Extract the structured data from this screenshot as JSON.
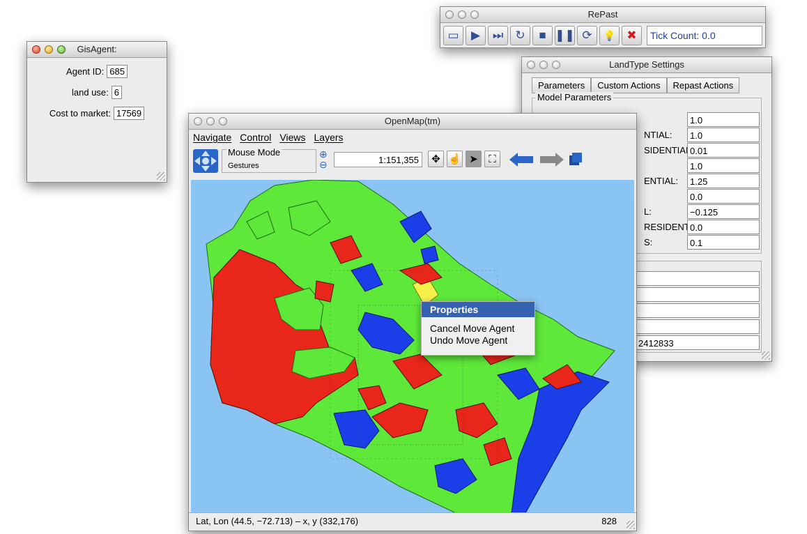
{
  "gis_agent": {
    "title": "GisAgent:",
    "fields": [
      {
        "label": "Agent ID:",
        "value": "685"
      },
      {
        "label": "land use:",
        "value": "6"
      },
      {
        "label": "Cost to market:",
        "value": "17569"
      }
    ]
  },
  "repast": {
    "title": "RePast",
    "tick_count": "Tick Count: 0.0",
    "buttons": [
      {
        "icon": "folder-icon",
        "glyph": "▭"
      },
      {
        "icon": "play-icon",
        "glyph": "▶"
      },
      {
        "icon": "step-icon",
        "glyph": "⏭"
      },
      {
        "icon": "restart-icon",
        "glyph": "↻"
      },
      {
        "icon": "stop-icon",
        "glyph": "■"
      },
      {
        "icon": "pause-icon",
        "glyph": "❚❚"
      },
      {
        "icon": "reload-icon",
        "glyph": "⟳"
      },
      {
        "icon": "lightbulb-icon",
        "glyph": "💡"
      },
      {
        "icon": "exit-icon",
        "glyph": "✖"
      }
    ]
  },
  "landtype": {
    "title": "LandType Settings",
    "tabs": [
      "Parameters",
      "Custom Actions",
      "Repast Actions"
    ],
    "group_title": "Model Parameters",
    "params": [
      {
        "label": "",
        "value": "1.0"
      },
      {
        "label": "NTIAL:",
        "value": "1.0"
      },
      {
        "label": "SIDENTIAL:",
        "value": "0.01"
      },
      {
        "label": "",
        "value": "1.0"
      },
      {
        "label": "ENTIAL:",
        "value": "1.25"
      },
      {
        "label": "",
        "value": "0.0"
      },
      {
        "label": "L:",
        "value": "−0.125"
      },
      {
        "label": "RESIDENTIAL:",
        "value": "0.0"
      },
      {
        "label": "S:",
        "value": "0.1"
      }
    ],
    "lower_values": [
      "",
      "",
      "",
      "",
      "2412833"
    ]
  },
  "openmap": {
    "title": "OpenMap(tm)",
    "menus": [
      "Navigate",
      "Control",
      "Views",
      "Layers"
    ],
    "mouse_mode_label": "Mouse Mode",
    "mouse_mode_value": "Gestures",
    "scale": "1:151,355",
    "status_left": "Lat, Lon (44.5, −72.713) – x, y (332,176)",
    "status_right": "828",
    "colors": {
      "water": "#8ac4f2",
      "green": "#5ee83a",
      "red": "#e8261a",
      "blue": "#1a3ee8",
      "yellow": "#f5f04a"
    }
  },
  "popup": {
    "selected": "Properties",
    "items": [
      "Cancel Move Agent",
      "Undo Move Agent"
    ]
  }
}
